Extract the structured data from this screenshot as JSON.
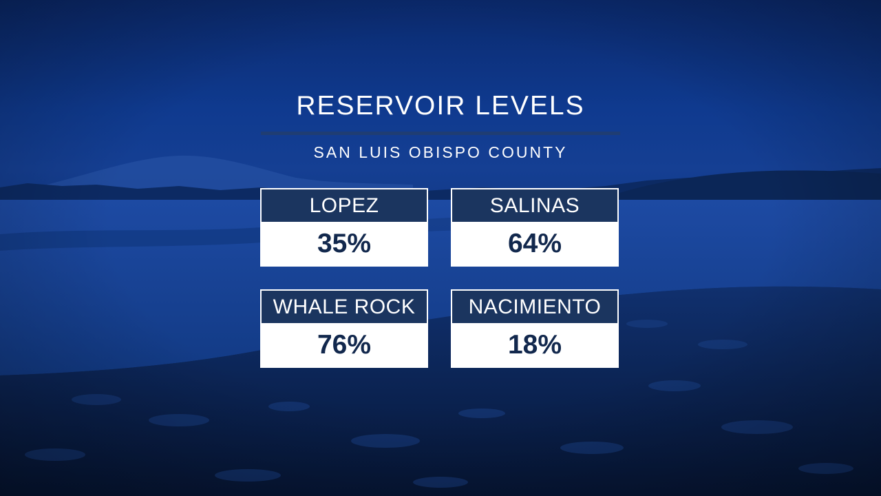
{
  "title": "RESERVOIR LEVELS",
  "subtitle": "SAN LUIS OBISPO COUNTY",
  "reservoirs": [
    {
      "name": "LOPEZ",
      "level": "35%"
    },
    {
      "name": "SALINAS",
      "level": "64%"
    },
    {
      "name": "WHALE ROCK",
      "level": "76%"
    },
    {
      "name": "NACIMIENTO",
      "level": "18%"
    }
  ],
  "colors": {
    "header_band": "#1b355f",
    "value_text": "#12284d",
    "background_tint": "#123a88"
  }
}
